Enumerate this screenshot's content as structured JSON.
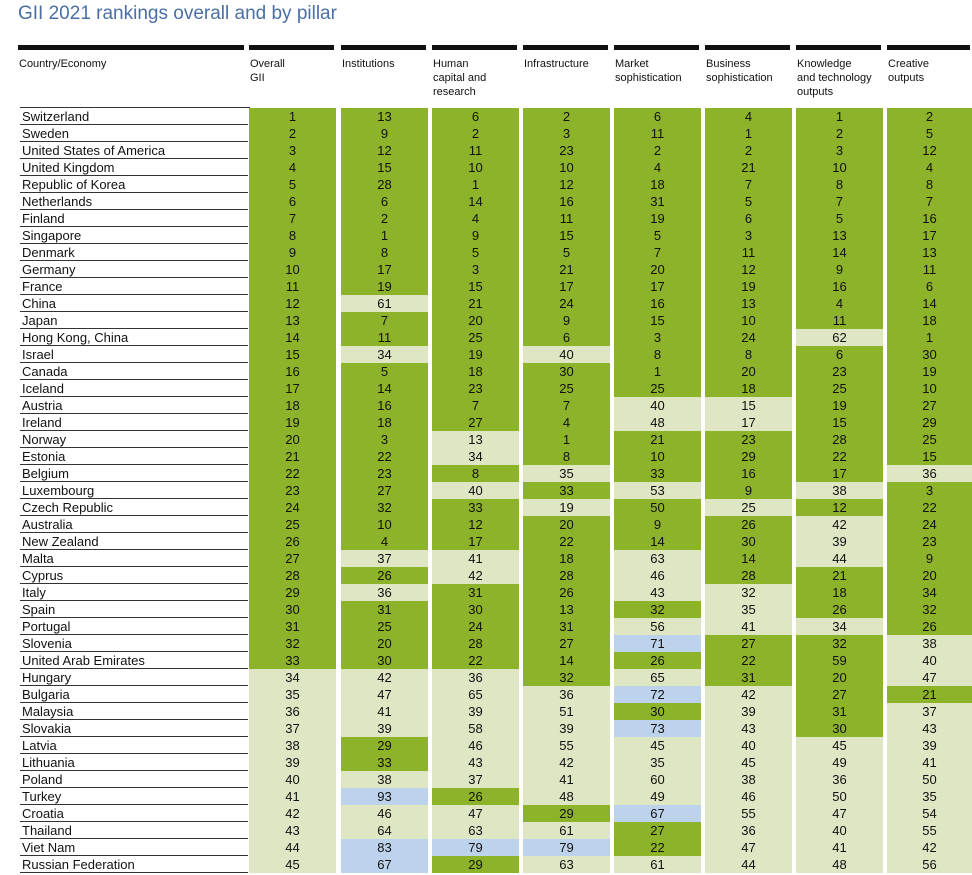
{
  "title": "GII 2021 rankings overall and by pillar",
  "colors": {
    "green": "#8db32b",
    "light": "#dfe6c3",
    "blue": "#bcd3eb",
    "header_rule": "#111111",
    "title": "#4a6fa5"
  },
  "columns": [
    "Country/Economy",
    "Overall\nGII",
    "Institutions",
    "Human\ncapital and\nresearch",
    "Infrastructure",
    "Market\nsophistication",
    "Business\nsophistication",
    "Knowledge\nand technology\noutputs",
    "Creative\noutputs"
  ],
  "rows": [
    {
      "name": "Switzerland",
      "v": [
        1,
        13,
        6,
        2,
        6,
        4,
        1,
        2
      ],
      "c": "gggggggg"
    },
    {
      "name": "Sweden",
      "v": [
        2,
        9,
        2,
        3,
        11,
        1,
        2,
        5
      ],
      "c": "gggggggg"
    },
    {
      "name": "United States of America",
      "v": [
        3,
        12,
        11,
        23,
        2,
        2,
        3,
        12
      ],
      "c": "gggggggg"
    },
    {
      "name": "United Kingdom",
      "v": [
        4,
        15,
        10,
        10,
        4,
        21,
        10,
        4
      ],
      "c": "gggggggg"
    },
    {
      "name": "Republic of Korea",
      "v": [
        5,
        28,
        1,
        12,
        18,
        7,
        8,
        8
      ],
      "c": "gggggggg"
    },
    {
      "name": "Netherlands",
      "v": [
        6,
        6,
        14,
        16,
        31,
        5,
        7,
        7
      ],
      "c": "gggggggg"
    },
    {
      "name": "Finland",
      "v": [
        7,
        2,
        4,
        11,
        19,
        6,
        5,
        16
      ],
      "c": "gggggggg"
    },
    {
      "name": "Singapore",
      "v": [
        8,
        1,
        9,
        15,
        5,
        3,
        13,
        17
      ],
      "c": "gggggggg"
    },
    {
      "name": "Denmark",
      "v": [
        9,
        8,
        5,
        5,
        7,
        11,
        14,
        13
      ],
      "c": "gggggggg"
    },
    {
      "name": "Germany",
      "v": [
        10,
        17,
        3,
        21,
        20,
        12,
        9,
        11
      ],
      "c": "gggggggg"
    },
    {
      "name": "France",
      "v": [
        11,
        19,
        15,
        17,
        17,
        19,
        16,
        6
      ],
      "c": "gggggggg"
    },
    {
      "name": "China",
      "v": [
        12,
        61,
        21,
        24,
        16,
        13,
        4,
        14
      ],
      "c": "glgggggg"
    },
    {
      "name": "Japan",
      "v": [
        13,
        7,
        20,
        9,
        15,
        10,
        11,
        18
      ],
      "c": "gggggggg"
    },
    {
      "name": "Hong Kong, China",
      "v": [
        14,
        11,
        25,
        6,
        3,
        24,
        62,
        1
      ],
      "c": "ggggggla"
    },
    {
      "name": "Israel",
      "v": [
        15,
        34,
        19,
        40,
        8,
        8,
        6,
        30
      ],
      "c": "glglgggg"
    },
    {
      "name": "Canada",
      "v": [
        16,
        5,
        18,
        30,
        1,
        20,
        23,
        19
      ],
      "c": "gggggggg"
    },
    {
      "name": "Iceland",
      "v": [
        17,
        14,
        23,
        25,
        25,
        18,
        25,
        10
      ],
      "c": "gggggggg"
    },
    {
      "name": "Austria",
      "v": [
        18,
        16,
        7,
        7,
        40,
        15,
        19,
        27
      ],
      "c": "ggggllgg"
    },
    {
      "name": "Ireland",
      "v": [
        19,
        18,
        27,
        4,
        48,
        17,
        15,
        29
      ],
      "c": "ggggllgg"
    },
    {
      "name": "Norway",
      "v": [
        20,
        3,
        13,
        1,
        21,
        23,
        28,
        25
      ],
      "c": "gglggggg"
    },
    {
      "name": "Estonia",
      "v": [
        21,
        22,
        34,
        8,
        10,
        29,
        22,
        15
      ],
      "c": "gglggggg"
    },
    {
      "name": "Belgium",
      "v": [
        22,
        23,
        8,
        35,
        33,
        16,
        17,
        36
      ],
      "c": "ggglgggl"
    },
    {
      "name": "Luxembourg",
      "v": [
        23,
        27,
        40,
        33,
        53,
        9,
        38,
        3
      ],
      "c": "gglglglg"
    },
    {
      "name": "Czech Republic",
      "v": [
        24,
        32,
        33,
        19,
        50,
        25,
        12,
        22
      ],
      "c": "ggglglgg"
    },
    {
      "name": "Australia",
      "v": [
        25,
        10,
        12,
        20,
        9,
        26,
        42,
        24
      ],
      "c": "gggggglg"
    },
    {
      "name": "New Zealand",
      "v": [
        26,
        4,
        17,
        22,
        14,
        30,
        39,
        23
      ],
      "c": "gggggglg"
    },
    {
      "name": "Malta",
      "v": [
        27,
        37,
        41,
        18,
        63,
        14,
        44,
        9
      ],
      "c": "gllglglg"
    },
    {
      "name": "Cyprus",
      "v": [
        28,
        26,
        42,
        28,
        46,
        28,
        21,
        20
      ],
      "c": "gglglggg"
    },
    {
      "name": "Italy",
      "v": [
        29,
        36,
        31,
        26,
        43,
        32,
        18,
        34
      ],
      "c": "glggllgg"
    },
    {
      "name": "Spain",
      "v": [
        30,
        31,
        30,
        13,
        32,
        35,
        26,
        32
      ],
      "c": "ggggglgg"
    },
    {
      "name": "Portugal",
      "v": [
        31,
        25,
        24,
        31,
        56,
        41,
        34,
        26
      ],
      "c": "gggglllg"
    },
    {
      "name": "Slovenia",
      "v": [
        32,
        20,
        28,
        27,
        71,
        27,
        32,
        38
      ],
      "c": "ggggbggl"
    },
    {
      "name": "United Arab Emirates",
      "v": [
        33,
        30,
        22,
        14,
        26,
        22,
        59,
        40
      ],
      "c": "gggggggl"
    },
    {
      "name": "Hungary",
      "v": [
        34,
        42,
        36,
        32,
        65,
        31,
        20,
        47
      ],
      "c": "lllglggl"
    },
    {
      "name": "Bulgaria",
      "v": [
        35,
        47,
        65,
        36,
        72,
        42,
        27,
        21
      ],
      "c": "llllblgg"
    },
    {
      "name": "Malaysia",
      "v": [
        36,
        41,
        39,
        51,
        30,
        39,
        31,
        37
      ],
      "c": "llllglgl"
    },
    {
      "name": "Slovakia",
      "v": [
        37,
        39,
        58,
        39,
        73,
        43,
        30,
        43
      ],
      "c": "llllblgl"
    },
    {
      "name": "Latvia",
      "v": [
        38,
        29,
        46,
        55,
        45,
        40,
        45,
        39
      ],
      "c": "lgllllll"
    },
    {
      "name": "Lithuania",
      "v": [
        39,
        33,
        43,
        42,
        35,
        45,
        49,
        41
      ],
      "c": "lgllllll"
    },
    {
      "name": "Poland",
      "v": [
        40,
        38,
        37,
        41,
        60,
        38,
        36,
        50
      ],
      "c": "llllllll"
    },
    {
      "name": "Turkey",
      "v": [
        41,
        93,
        26,
        48,
        49,
        46,
        50,
        35
      ],
      "c": "lbglllll"
    },
    {
      "name": "Croatia",
      "v": [
        42,
        46,
        47,
        29,
        67,
        55,
        47,
        54
      ],
      "c": "lllgblll"
    },
    {
      "name": "Thailand",
      "v": [
        43,
        64,
        63,
        61,
        27,
        36,
        40,
        55
      ],
      "c": "llllglll"
    },
    {
      "name": "Viet Nam",
      "v": [
        44,
        83,
        79,
        79,
        22,
        47,
        41,
        42
      ],
      "c": "lbbbglll"
    },
    {
      "name": "Russian Federation",
      "v": [
        45,
        67,
        29,
        63,
        61,
        44,
        48,
        56
      ],
      "c": "lbglllll"
    }
  ]
}
